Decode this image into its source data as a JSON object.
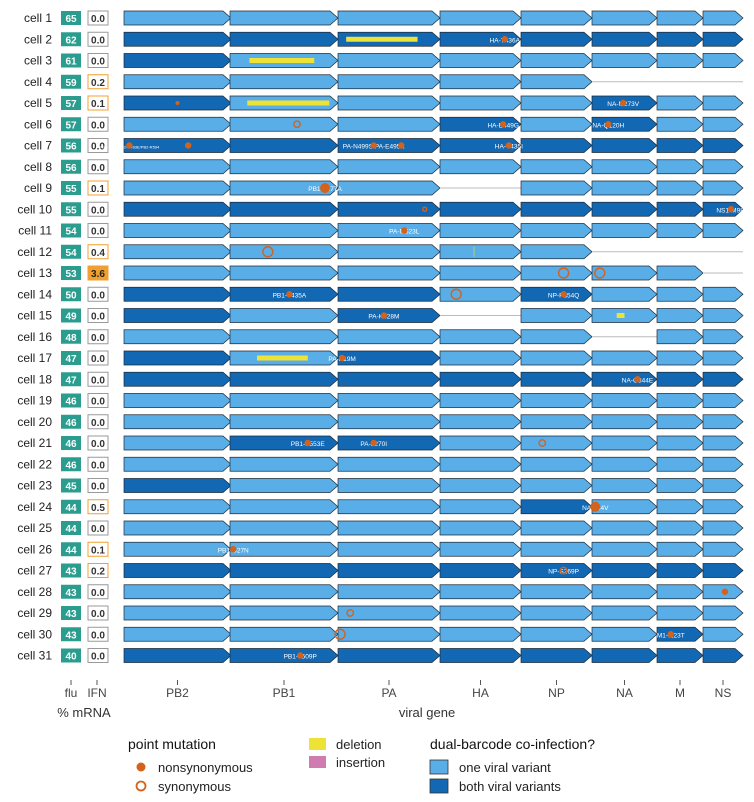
{
  "colors": {
    "one_variant": "#5aaee8",
    "both_variants": "#1268b3",
    "nonsyn": "#d4621a",
    "syn": "#d4621a",
    "deletion": "#ede235",
    "insertion": "#cf7cb0",
    "flu_box": "#2a9d8f",
    "ifn_box_border_low": "#999999",
    "ifn_box_border_mid": "#f0a030",
    "ifn_box_fill_high": "#f0a030"
  },
  "chart_data": {
    "type": "table",
    "genes": [
      "PB2",
      "PB1",
      "PA",
      "HA",
      "NP",
      "NA",
      "M",
      "NS"
    ],
    "xlabel": "viral gene",
    "col_labels": {
      "flu": "flu",
      "ifn": "IFN",
      "units": "% mRNA"
    },
    "legend": {
      "point_title": "point mutation",
      "nonsyn": "nonsynonymous",
      "syn": "synonymous",
      "deletion": "deletion",
      "insertion": "insertion",
      "coinf_title": "dual-barcode co-infection?",
      "one": "one viral variant",
      "both": "both viral variants"
    },
    "cells": [
      {
        "label": "cell 1",
        "flu": "65",
        "ifn": "0.0",
        "genes": [
          "o",
          "o",
          "o",
          "o",
          "o",
          "o",
          "o",
          "o"
        ],
        "muts": [],
        "dels": [],
        "ins": []
      },
      {
        "label": "cell 2",
        "flu": "62",
        "ifn": "0.0",
        "genes": [
          "b",
          "b",
          "b",
          "b",
          "b",
          "b",
          "b",
          "b"
        ],
        "muts": [
          {
            "g": 3,
            "p": 0.8,
            "t": "n",
            "lbl": "HA-T436A"
          }
        ],
        "dels": [
          {
            "g": 2,
            "a": 0.08,
            "b": 0.78
          }
        ],
        "ins": []
      },
      {
        "label": "cell 3",
        "flu": "61",
        "ifn": "0.0",
        "genes": [
          "b",
          "o",
          "o",
          "o",
          "o",
          "o",
          "o",
          "o"
        ],
        "muts": [],
        "dels": [
          {
            "g": 1,
            "a": 0.18,
            "b": 0.78
          }
        ],
        "ins": []
      },
      {
        "label": "cell 4",
        "flu": "59",
        "ifn": "0.2",
        "genes": [
          "o",
          "o",
          "o",
          "o",
          "o",
          "x",
          "x",
          "x"
        ],
        "muts": [],
        "dels": [],
        "ins": []
      },
      {
        "label": "cell 5",
        "flu": "57",
        "ifn": "0.1",
        "genes": [
          "b",
          "o",
          "o",
          "o",
          "o",
          "b",
          "o",
          "o"
        ],
        "muts": [
          {
            "g": 0,
            "p": 0.5,
            "t": "n",
            "sm": 1
          },
          {
            "g": 5,
            "p": 0.48,
            "t": "n",
            "lbl": "NA-M273V"
          }
        ],
        "dels": [
          {
            "g": 1,
            "a": 0.16,
            "b": 0.92
          }
        ],
        "ins": []
      },
      {
        "label": "cell 6",
        "flu": "57",
        "ifn": "0.0",
        "genes": [
          "o",
          "o",
          "o",
          "b",
          "o",
          "b",
          "o",
          "o"
        ],
        "muts": [
          {
            "g": 1,
            "p": 0.62,
            "t": "s"
          },
          {
            "g": 3,
            "p": 0.78,
            "t": "n",
            "lbl": "HA-E449G"
          },
          {
            "g": 5,
            "p": 0.25,
            "t": "n",
            "lbl": "NA-Q120H"
          }
        ],
        "dels": [],
        "ins": []
      },
      {
        "label": "cell 7",
        "flu": "56",
        "ifn": "0.0",
        "genes": [
          "b",
          "b",
          "b",
          "b",
          "b",
          "b",
          "b",
          "b"
        ],
        "muts": [
          {
            "g": 0,
            "p": 0.05,
            "t": "n",
            "lbl": "PB2-M31I/PB2-G493E/PB2-R594"
          },
          {
            "g": 0,
            "p": 0.6,
            "t": "n"
          },
          {
            "g": 2,
            "p": 0.35,
            "t": "n",
            "lbl": "PA-N499S PA-E495K"
          },
          {
            "g": 2,
            "p": 0.62,
            "t": "n"
          },
          {
            "g": 3,
            "p": 0.85,
            "t": "n",
            "lbl": "HA-V435I"
          }
        ],
        "dels": [],
        "ins": []
      },
      {
        "label": "cell 8",
        "flu": "56",
        "ifn": "0.0",
        "genes": [
          "o",
          "o",
          "o",
          "o",
          "o",
          "o",
          "o",
          "o"
        ],
        "muts": [],
        "dels": [],
        "ins": []
      },
      {
        "label": "cell 9",
        "flu": "55",
        "ifn": "0.1",
        "genes": [
          "o",
          "o",
          "o",
          "x",
          "o",
          "o",
          "o",
          "o"
        ],
        "muts": [
          {
            "g": 1,
            "p": 0.88,
            "t": "n",
            "lbl": "PB1-T677A",
            "big": 1
          }
        ],
        "dels": [],
        "ins": []
      },
      {
        "label": "cell 10",
        "flu": "55",
        "ifn": "0.0",
        "genes": [
          "b",
          "b",
          "b",
          "b",
          "b",
          "b",
          "b",
          "b"
        ],
        "muts": [
          {
            "g": 2,
            "p": 0.85,
            "t": "s",
            "sm": 1
          },
          {
            "g": 7,
            "p": 0.7,
            "t": "n",
            "lbl": "NS1-M98I"
          }
        ],
        "dels": [],
        "ins": []
      },
      {
        "label": "cell 11",
        "flu": "54",
        "ifn": "0.0",
        "genes": [
          "o",
          "o",
          "o",
          "o",
          "o",
          "o",
          "o",
          "o"
        ],
        "muts": [
          {
            "g": 2,
            "p": 0.65,
            "t": "n",
            "lbl": "PA-M623L"
          }
        ],
        "dels": [],
        "ins": []
      },
      {
        "label": "cell 12",
        "flu": "54",
        "ifn": "0.4",
        "genes": [
          "o",
          "o",
          "o",
          "o",
          "o",
          "x",
          "x",
          "x"
        ],
        "muts": [
          {
            "g": 1,
            "p": 0.35,
            "t": "s",
            "big": 1
          }
        ],
        "dels": [],
        "ins": [
          {
            "g": 3,
            "p": 0.42
          }
        ]
      },
      {
        "label": "cell 13",
        "flu": "53",
        "ifn": "3.6",
        "genes": [
          "o",
          "o",
          "o",
          "o",
          "o",
          "o",
          "o",
          "x"
        ],
        "muts": [
          {
            "g": 4,
            "p": 0.6,
            "t": "s",
            "big": 1
          },
          {
            "g": 5,
            "p": 0.12,
            "t": "s",
            "big": 1
          }
        ],
        "dels": [],
        "ins": []
      },
      {
        "label": "cell 14",
        "flu": "50",
        "ifn": "0.0",
        "genes": [
          "b",
          "b",
          "b",
          "o",
          "b",
          "o",
          "o",
          "o"
        ],
        "muts": [
          {
            "g": 1,
            "p": 0.55,
            "t": "n",
            "lbl": "PB1-T435A"
          },
          {
            "g": 3,
            "p": 0.2,
            "t": "s",
            "big": 1
          },
          {
            "g": 4,
            "p": 0.6,
            "t": "n",
            "lbl": "NP-P354Q"
          }
        ],
        "dels": [],
        "ins": []
      },
      {
        "label": "cell 15",
        "flu": "49",
        "ifn": "0.0",
        "genes": [
          "b",
          "o",
          "b",
          "x",
          "o",
          "o",
          "o",
          "o"
        ],
        "muts": [
          {
            "g": 2,
            "p": 0.45,
            "t": "n",
            "lbl": "PA-K328M"
          }
        ],
        "dels": [
          {
            "g": 5,
            "a": 0.38,
            "b": 0.5
          }
        ],
        "ins": []
      },
      {
        "label": "cell 16",
        "flu": "48",
        "ifn": "0.0",
        "genes": [
          "o",
          "o",
          "o",
          "o",
          "o",
          "x",
          "o",
          "o"
        ],
        "muts": [],
        "dels": [],
        "ins": []
      },
      {
        "label": "cell 17",
        "flu": "47",
        "ifn": "0.0",
        "genes": [
          "b",
          "o",
          "b",
          "o",
          "o",
          "o",
          "o",
          "o"
        ],
        "muts": [
          {
            "g": 2,
            "p": 0.04,
            "t": "n",
            "lbl": "PA-K19M"
          }
        ],
        "dels": [
          {
            "g": 1,
            "a": 0.25,
            "b": 0.72
          }
        ],
        "ins": []
      },
      {
        "label": "cell 18",
        "flu": "47",
        "ifn": "0.0",
        "genes": [
          "b",
          "b",
          "b",
          "b",
          "b",
          "b",
          "b",
          "b"
        ],
        "muts": [
          {
            "g": 5,
            "p": 0.7,
            "t": "n",
            "lbl": "NA-G344E"
          }
        ],
        "dels": [],
        "ins": []
      },
      {
        "label": "cell 19",
        "flu": "46",
        "ifn": "0.0",
        "genes": [
          "o",
          "o",
          "o",
          "o",
          "o",
          "o",
          "o",
          "o"
        ],
        "muts": [],
        "dels": [],
        "ins": []
      },
      {
        "label": "cell 20",
        "flu": "46",
        "ifn": "0.0",
        "genes": [
          "o",
          "o",
          "o",
          "o",
          "o",
          "o",
          "o",
          "o"
        ],
        "muts": [],
        "dels": [],
        "ins": []
      },
      {
        "label": "cell 21",
        "flu": "46",
        "ifn": "0.0",
        "genes": [
          "o",
          "b",
          "b",
          "o",
          "o",
          "o",
          "o",
          "o"
        ],
        "muts": [
          {
            "g": 1,
            "p": 0.72,
            "t": "n",
            "lbl": "PB1-K553E"
          },
          {
            "g": 2,
            "p": 0.35,
            "t": "n",
            "lbl": "PA-L270I"
          },
          {
            "g": 4,
            "p": 0.3,
            "t": "s"
          }
        ],
        "dels": [],
        "ins": []
      },
      {
        "label": "cell 22",
        "flu": "46",
        "ifn": "0.0",
        "genes": [
          "o",
          "o",
          "o",
          "o",
          "o",
          "o",
          "o",
          "o"
        ],
        "muts": [],
        "dels": [],
        "ins": []
      },
      {
        "label": "cell 23",
        "flu": "45",
        "ifn": "0.0",
        "genes": [
          "b",
          "o",
          "o",
          "o",
          "o",
          "o",
          "o",
          "o"
        ],
        "muts": [],
        "dels": [],
        "ins": []
      },
      {
        "label": "cell 24",
        "flu": "44",
        "ifn": "0.5",
        "genes": [
          "o",
          "o",
          "o",
          "o",
          "b",
          "o",
          "o",
          "o"
        ],
        "muts": [
          {
            "g": 5,
            "p": 0.05,
            "t": "n",
            "lbl": "NA-L24V",
            "big": 1
          }
        ],
        "dels": [],
        "ins": []
      },
      {
        "label": "cell 25",
        "flu": "44",
        "ifn": "0.0",
        "genes": [
          "o",
          "o",
          "o",
          "o",
          "o",
          "o",
          "o",
          "o"
        ],
        "muts": [],
        "dels": [],
        "ins": []
      },
      {
        "label": "cell 26",
        "flu": "44",
        "ifn": "0.1",
        "genes": [
          "o",
          "o",
          "o",
          "o",
          "o",
          "o",
          "o",
          "o"
        ],
        "muts": [
          {
            "g": 1,
            "p": 0.03,
            "t": "n",
            "lbl": "PB1-D27N"
          }
        ],
        "dels": [],
        "ins": []
      },
      {
        "label": "cell 27",
        "flu": "43",
        "ifn": "0.2",
        "genes": [
          "b",
          "b",
          "b",
          "b",
          "b",
          "b",
          "b",
          "b"
        ],
        "muts": [
          {
            "g": 4,
            "p": 0.6,
            "t": "s",
            "lbl": "NP-S269P"
          }
        ],
        "dels": [],
        "ins": []
      },
      {
        "label": "cell 28",
        "flu": "43",
        "ifn": "0.0",
        "genes": [
          "o",
          "o",
          "o",
          "o",
          "o",
          "o",
          "o",
          "o"
        ],
        "muts": [
          {
            "g": 7,
            "p": 0.55,
            "t": "n"
          }
        ],
        "dels": [],
        "ins": []
      },
      {
        "label": "cell 29",
        "flu": "43",
        "ifn": "0.0",
        "genes": [
          "o",
          "o",
          "o",
          "o",
          "o",
          "o",
          "o",
          "o"
        ],
        "muts": [
          {
            "g": 2,
            "p": 0.12,
            "t": "s"
          }
        ],
        "dels": [],
        "ins": []
      },
      {
        "label": "cell 30",
        "flu": "43",
        "ifn": "0.0",
        "genes": [
          "o",
          "o",
          "o",
          "o",
          "o",
          "o",
          "b",
          "o"
        ],
        "muts": [
          {
            "g": 2,
            "p": 0.02,
            "t": "s",
            "big": 1
          },
          {
            "g": 6,
            "p": 0.3,
            "t": "n",
            "lbl": "M1-I123T"
          }
        ],
        "dels": [],
        "ins": []
      },
      {
        "label": "cell 31",
        "flu": "40",
        "ifn": "0.0",
        "genes": [
          "b",
          "b",
          "b",
          "b",
          "b",
          "b",
          "b",
          "b"
        ],
        "muts": [
          {
            "g": 1,
            "p": 0.65,
            "t": "n",
            "lbl": "PB1-L509P"
          }
        ],
        "dels": [],
        "ins": []
      }
    ]
  }
}
